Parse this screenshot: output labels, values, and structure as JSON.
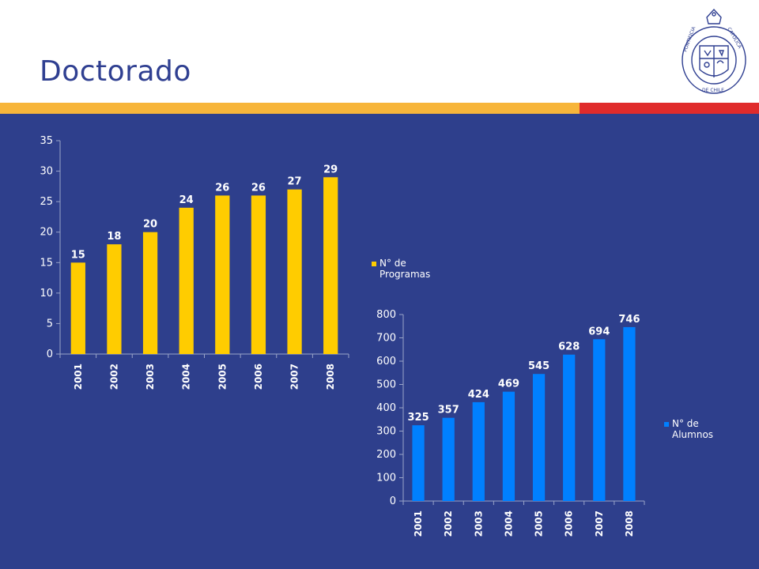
{
  "slide": {
    "title": "Doctorado"
  },
  "colors": {
    "background_panel": "#2e3f8c",
    "title": "#2f3f91",
    "stripe_yellow": "#f7b53a",
    "stripe_red": "#e02b2b",
    "programs_bar": "#ffcc00",
    "students_bar": "#0080ff"
  },
  "logo": {
    "name": "pontificia-universidad-catolica-de-chile-seal",
    "text": "PONTIFICIA UNIVERSIDAD CATÓLICA DE CHILE"
  },
  "chart_data": [
    {
      "type": "bar",
      "categories": [
        "2001",
        "2002",
        "2003",
        "2004",
        "2005",
        "2006",
        "2007",
        "2008"
      ],
      "series": [
        {
          "name": "N° de Programas",
          "values": [
            15,
            18,
            20,
            24,
            26,
            26,
            27,
            29
          ]
        }
      ],
      "ylim": [
        0,
        35
      ],
      "yticks": [
        0,
        5,
        10,
        15,
        20,
        25,
        30,
        35
      ],
      "legend": "right",
      "grid": false,
      "data_labels": true
    },
    {
      "type": "bar",
      "categories": [
        "2001",
        "2002",
        "2003",
        "2004",
        "2005",
        "2006",
        "2007",
        "2008"
      ],
      "series": [
        {
          "name": "N° de Alumnos",
          "values": [
            325,
            357,
            424,
            469,
            545,
            628,
            694,
            746
          ]
        }
      ],
      "ylim": [
        0,
        800
      ],
      "yticks": [
        0,
        100,
        200,
        300,
        400,
        500,
        600,
        700,
        800
      ],
      "legend": "right",
      "grid": false,
      "data_labels": true
    }
  ]
}
